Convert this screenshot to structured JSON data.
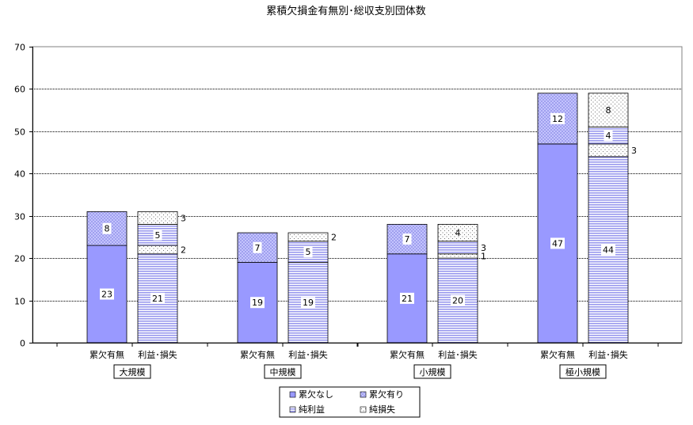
{
  "chart_data": {
    "type": "bar",
    "title": "累積欠損金有無別･総収支別団体数",
    "ylim": [
      0,
      70
    ],
    "yticks": [
      0,
      10,
      20,
      30,
      40,
      50,
      60,
      70
    ],
    "grid": true,
    "legend_position": "bottom",
    "bar_labels": [
      "累欠有無",
      "利益･損失"
    ],
    "groups": [
      {
        "name": "大規模",
        "累欠なし": 23,
        "累欠有り": 8,
        "純利益": 21,
        "利益損失混在": 2,
        "純損失": 5,
        "その他": 3
      },
      {
        "name": "中規模",
        "累欠なし": 19,
        "累欠有り": 7,
        "純利益": 19,
        "利益損失混在": 0,
        "純損失": 5,
        "その他": 2
      },
      {
        "name": "小規模",
        "累欠なし": 21,
        "累欠有り": 7,
        "純利益": 20,
        "利益損失混在": 1,
        "純損失": 3,
        "その他": 4
      },
      {
        "name": "極小規模",
        "累欠なし": 47,
        "累欠有り": 12,
        "純利益": 44,
        "利益損失混在": 3,
        "純損失": 4,
        "その他": 8
      }
    ],
    "series_legend": [
      "累欠なし",
      "累欠有り",
      "純利益",
      "純損失"
    ]
  },
  "colors": {
    "bar_blue": "#9999ff",
    "hatch_stroke": "#8888dd",
    "dots": "#666666",
    "line_dark": "#000080"
  }
}
